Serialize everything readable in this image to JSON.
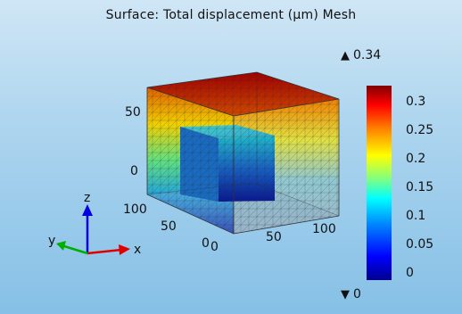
{
  "plot": {
    "title": "Surface: Total displacement (µm) Mesh",
    "max_label": "0.34",
    "min_label": "0",
    "max_marker_icon": "up-triangle-icon",
    "min_marker_icon": "down-triangle-icon"
  },
  "colorbar": {
    "colors": [
      "#00008f",
      "#0000ff",
      "#0080ff",
      "#00ffff",
      "#80ff80",
      "#ffff00",
      "#ff8000",
      "#ff0000",
      "#800000"
    ],
    "range": [
      0,
      0.34
    ],
    "ticks": [
      {
        "label": "0.3",
        "value": 0.3
      },
      {
        "label": "0.25",
        "value": 0.25
      },
      {
        "label": "0.2",
        "value": 0.2
      },
      {
        "label": "0.15",
        "value": 0.15
      },
      {
        "label": "0.1",
        "value": 0.1
      },
      {
        "label": "0.05",
        "value": 0.05
      },
      {
        "label": "0",
        "value": 0
      }
    ]
  },
  "axes": {
    "vertical_ticks": [
      "50",
      "0"
    ],
    "depth_ticks": [
      "100",
      "50",
      "0"
    ],
    "x_ticks": [
      "0",
      "50",
      "100"
    ]
  },
  "triad": {
    "x_label": "x",
    "y_label": "y",
    "z_label": "z",
    "x_color": "#e00000",
    "y_color": "#00b000",
    "z_color": "#0000e0"
  }
}
